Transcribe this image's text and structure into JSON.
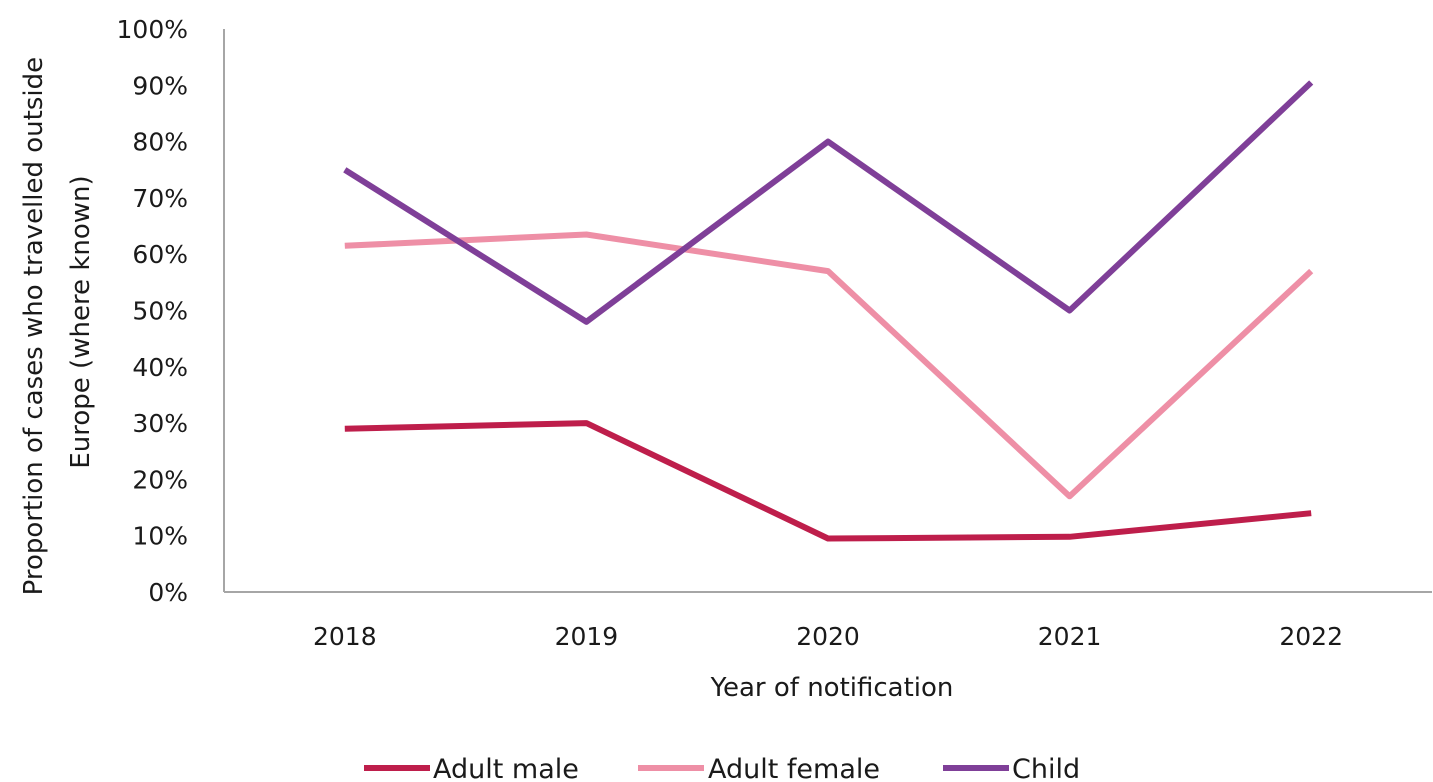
{
  "chart_data": {
    "type": "line",
    "xlabel": "Year of notification",
    "ylabel_lines": [
      "Proportion of cases who travelled outside",
      "Europe (where known)"
    ],
    "categories": [
      "2018",
      "2019",
      "2020",
      "2021",
      "2022"
    ],
    "y_ticks": [
      "0%",
      "10%",
      "20%",
      "30%",
      "40%",
      "50%",
      "60%",
      "70%",
      "80%",
      "90%",
      "100%"
    ],
    "ylim": [
      0,
      100
    ],
    "y_unit": "%",
    "grid": false,
    "legend_position": "bottom",
    "series": [
      {
        "name": "Adult male",
        "color": "#be1e4b",
        "values": [
          29,
          30,
          9.5,
          9.8,
          14
        ]
      },
      {
        "name": "Adult female",
        "color": "#ee8fa6",
        "values": [
          61.5,
          63.5,
          57,
          17,
          57
        ]
      },
      {
        "name": "Child",
        "color": "#7f3f98",
        "values": [
          75,
          48,
          80,
          50,
          90.5
        ]
      }
    ]
  }
}
